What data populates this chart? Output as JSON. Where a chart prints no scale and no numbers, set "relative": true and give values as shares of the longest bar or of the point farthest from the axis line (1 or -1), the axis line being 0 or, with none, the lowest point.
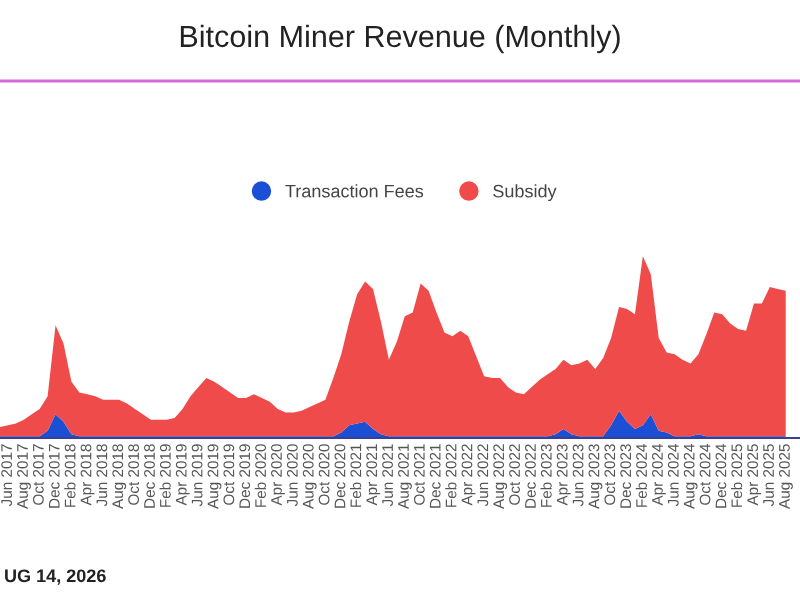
{
  "chart_data": {
    "type": "area",
    "title": "Bitcoin Miner Revenue (Monthly)",
    "stacked": true,
    "relative": true,
    "legend": "top",
    "grid": false,
    "annotations": [
      "UG 14, 2026"
    ],
    "categories": [
      null,
      "Jun 2017",
      null,
      "Aug 2017",
      null,
      "Oct 2017",
      null,
      "Dec 2017",
      null,
      "Feb 2018",
      null,
      "Apr 2018",
      null,
      "Jun 2018",
      null,
      "Aug 2018",
      null,
      "Oct 2018",
      null,
      "Dec 2018",
      null,
      "Feb 2019",
      null,
      "Apr 2019",
      null,
      "Jun 2019",
      null,
      "Aug 2019",
      null,
      "Oct 2019",
      null,
      "Dec 2019",
      null,
      "Feb 2020",
      null,
      "Apr 2020",
      null,
      "Jun 2020",
      null,
      "Aug 2020",
      null,
      "Oct 2020",
      null,
      "Dec 2020",
      null,
      "Feb 2021",
      null,
      "Apr 2021",
      null,
      "Jun 2021",
      null,
      "Aug 2021",
      null,
      "Oct 2021",
      null,
      "Dec 2021",
      null,
      "Feb 2022",
      null,
      "Apr 2022",
      null,
      "Jun 2022",
      null,
      "Aug 2022",
      null,
      "Oct 2022",
      null,
      "Dec 2022",
      null,
      "Feb 2023",
      null,
      "Apr 2023",
      null,
      "Jun 2023",
      null,
      "Aug 2023",
      null,
      "Oct 2023",
      null,
      "Dec 2023",
      null,
      "Feb 2024",
      null,
      "Apr 2024",
      null,
      "Jun 2024",
      null,
      "Aug 2024",
      null,
      "Oct 2024",
      null,
      "Dec 2024",
      null,
      "Feb 2025",
      null,
      "Apr 2025",
      null,
      "Jun 2025",
      null,
      "Aug 2025"
    ],
    "series": [
      {
        "name": "Transaction Fees",
        "color": "#1a4fd6",
        "values": [
          0.01,
          0.01,
          0.01,
          0.01,
          0.01,
          0.01,
          0.04,
          0.13,
          0.09,
          0.02,
          0.01,
          0.01,
          0.01,
          0.01,
          0.01,
          0.01,
          0.01,
          0.01,
          0.01,
          0.01,
          0.01,
          0.01,
          0.01,
          0.01,
          0.01,
          0.01,
          0.01,
          0.01,
          0.01,
          0.01,
          0.01,
          0.01,
          0.01,
          0.01,
          0.01,
          0.01,
          0.01,
          0.01,
          0.01,
          0.01,
          0.01,
          0.01,
          0.01,
          0.03,
          0.07,
          0.08,
          0.09,
          0.05,
          0.02,
          0.01,
          0.01,
          0.01,
          0.01,
          0.01,
          0.01,
          0.01,
          0.01,
          0.01,
          0.01,
          0.01,
          0.01,
          0.01,
          0.01,
          0.01,
          0.01,
          0.01,
          0.01,
          0.01,
          0.01,
          0.01,
          0.02,
          0.05,
          0.02,
          0.01,
          0.01,
          0.01,
          0.01,
          0.07,
          0.15,
          0.09,
          0.05,
          0.07,
          0.13,
          0.04,
          0.03,
          0.01,
          0.01,
          0.01,
          0.02,
          0.01,
          0.01,
          0.01,
          0.01,
          0.01,
          0.01,
          0.01,
          0.01,
          0.01,
          0.01,
          0.01
        ]
      },
      {
        "name": "Subsidy",
        "color": "#f04b4b",
        "values": [
          0.05,
          0.06,
          0.07,
          0.09,
          0.12,
          0.15,
          0.19,
          0.49,
          0.43,
          0.29,
          0.24,
          0.23,
          0.22,
          0.2,
          0.2,
          0.2,
          0.18,
          0.15,
          0.12,
          0.09,
          0.09,
          0.09,
          0.1,
          0.15,
          0.22,
          0.27,
          0.32,
          0.3,
          0.27,
          0.24,
          0.21,
          0.21,
          0.23,
          0.21,
          0.19,
          0.15,
          0.13,
          0.13,
          0.14,
          0.16,
          0.18,
          0.2,
          0.32,
          0.43,
          0.57,
          0.71,
          0.77,
          0.77,
          0.62,
          0.42,
          0.52,
          0.66,
          0.68,
          0.84,
          0.8,
          0.68,
          0.57,
          0.55,
          0.58,
          0.55,
          0.44,
          0.33,
          0.32,
          0.32,
          0.27,
          0.24,
          0.23,
          0.27,
          0.31,
          0.34,
          0.36,
          0.38,
          0.38,
          0.4,
          0.42,
          0.37,
          0.43,
          0.48,
          0.57,
          0.62,
          0.63,
          0.93,
          0.77,
          0.51,
          0.44,
          0.45,
          0.42,
          0.4,
          0.44,
          0.56,
          0.68,
          0.67,
          0.62,
          0.59,
          0.58,
          0.73,
          0.73,
          0.82,
          0.81,
          0.8
        ]
      }
    ]
  }
}
